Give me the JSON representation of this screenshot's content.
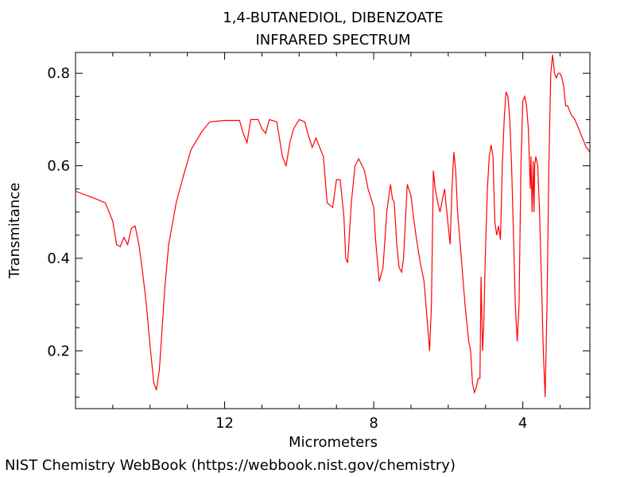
{
  "footer": "NIST Chemistry WebBook (https://webbook.nist.gov/chemistry)",
  "chart_data": {
    "type": "line",
    "title": "1,4-BUTANEDIOL, DIBENZOATE",
    "subtitle": "INFRARED SPECTRUM",
    "xlabel": "Micrometers",
    "ylabel": "Transmitance",
    "x_reversed": true,
    "xlim": [
      16.0,
      2.2
    ],
    "ylim": [
      0.075,
      0.845
    ],
    "x_ticks": [
      12,
      8,
      4
    ],
    "x_tick_labels": [
      "12",
      "8",
      "4"
    ],
    "y_ticks": [
      0.2,
      0.4,
      0.6,
      0.8
    ],
    "y_tick_labels": [
      "0.2",
      "0.4",
      "0.6",
      "0.8"
    ],
    "grid": false,
    "line_color": "#ff0000",
    "series": [
      {
        "values": [
          [
            16.0,
            0.545
          ],
          [
            15.5,
            0.53
          ],
          [
            15.2,
            0.52
          ],
          [
            15.0,
            0.48
          ],
          [
            14.9,
            0.43
          ],
          [
            14.8,
            0.425
          ],
          [
            14.7,
            0.445
          ],
          [
            14.6,
            0.43
          ],
          [
            14.5,
            0.465
          ],
          [
            14.4,
            0.47
          ],
          [
            14.3,
            0.43
          ],
          [
            14.2,
            0.37
          ],
          [
            14.1,
            0.3
          ],
          [
            14.0,
            0.21
          ],
          [
            13.9,
            0.13
          ],
          [
            13.83,
            0.115
          ],
          [
            13.75,
            0.16
          ],
          [
            13.6,
            0.34
          ],
          [
            13.5,
            0.43
          ],
          [
            13.3,
            0.52
          ],
          [
            13.1,
            0.58
          ],
          [
            12.9,
            0.635
          ],
          [
            12.6,
            0.675
          ],
          [
            12.4,
            0.695
          ],
          [
            12.0,
            0.698
          ],
          [
            11.6,
            0.698
          ],
          [
            11.5,
            0.67
          ],
          [
            11.4,
            0.65
          ],
          [
            11.3,
            0.7
          ],
          [
            11.1,
            0.7
          ],
          [
            11.0,
            0.68
          ],
          [
            10.9,
            0.67
          ],
          [
            10.8,
            0.7
          ],
          [
            10.6,
            0.695
          ],
          [
            10.45,
            0.62
          ],
          [
            10.35,
            0.6
          ],
          [
            10.25,
            0.65
          ],
          [
            10.15,
            0.68
          ],
          [
            10.0,
            0.7
          ],
          [
            9.85,
            0.695
          ],
          [
            9.75,
            0.665
          ],
          [
            9.65,
            0.64
          ],
          [
            9.55,
            0.66
          ],
          [
            9.45,
            0.64
          ],
          [
            9.35,
            0.62
          ],
          [
            9.25,
            0.52
          ],
          [
            9.1,
            0.51
          ],
          [
            9.0,
            0.57
          ],
          [
            8.9,
            0.57
          ],
          [
            8.8,
            0.49
          ],
          [
            8.75,
            0.4
          ],
          [
            8.7,
            0.39
          ],
          [
            8.6,
            0.52
          ],
          [
            8.5,
            0.6
          ],
          [
            8.4,
            0.615
          ],
          [
            8.25,
            0.59
          ],
          [
            8.15,
            0.55
          ],
          [
            8.0,
            0.51
          ],
          [
            7.95,
            0.44
          ],
          [
            7.85,
            0.35
          ],
          [
            7.75,
            0.38
          ],
          [
            7.65,
            0.5
          ],
          [
            7.55,
            0.56
          ],
          [
            7.5,
            0.53
          ],
          [
            7.45,
            0.52
          ],
          [
            7.38,
            0.43
          ],
          [
            7.32,
            0.38
          ],
          [
            7.25,
            0.37
          ],
          [
            7.2,
            0.4
          ],
          [
            7.1,
            0.56
          ],
          [
            7.0,
            0.535
          ],
          [
            6.95,
            0.5
          ],
          [
            6.85,
            0.44
          ],
          [
            6.75,
            0.39
          ],
          [
            6.65,
            0.35
          ],
          [
            6.55,
            0.25
          ],
          [
            6.5,
            0.2
          ],
          [
            6.45,
            0.3
          ],
          [
            6.4,
            0.59
          ],
          [
            6.35,
            0.55
          ],
          [
            6.28,
            0.52
          ],
          [
            6.22,
            0.5
          ],
          [
            6.15,
            0.53
          ],
          [
            6.1,
            0.55
          ],
          [
            6.0,
            0.47
          ],
          [
            5.95,
            0.43
          ],
          [
            5.9,
            0.55
          ],
          [
            5.85,
            0.63
          ],
          [
            5.8,
            0.59
          ],
          [
            5.75,
            0.5
          ],
          [
            5.65,
            0.4
          ],
          [
            5.55,
            0.3
          ],
          [
            5.45,
            0.22
          ],
          [
            5.4,
            0.2
          ],
          [
            5.35,
            0.13
          ],
          [
            5.3,
            0.11
          ],
          [
            5.25,
            0.12
          ],
          [
            5.2,
            0.14
          ],
          [
            5.15,
            0.14
          ],
          [
            5.12,
            0.36
          ],
          [
            5.08,
            0.2
          ],
          [
            5.05,
            0.25
          ],
          [
            5.0,
            0.42
          ],
          [
            4.95,
            0.55
          ],
          [
            4.9,
            0.62
          ],
          [
            4.85,
            0.645
          ],
          [
            4.8,
            0.62
          ],
          [
            4.75,
            0.48
          ],
          [
            4.7,
            0.45
          ],
          [
            4.65,
            0.47
          ],
          [
            4.6,
            0.44
          ],
          [
            4.55,
            0.6
          ],
          [
            4.5,
            0.7
          ],
          [
            4.45,
            0.76
          ],
          [
            4.4,
            0.75
          ],
          [
            4.35,
            0.7
          ],
          [
            4.3,
            0.6
          ],
          [
            4.25,
            0.45
          ],
          [
            4.2,
            0.3
          ],
          [
            4.15,
            0.22
          ],
          [
            4.1,
            0.3
          ],
          [
            4.05,
            0.6
          ],
          [
            4.0,
            0.74
          ],
          [
            3.95,
            0.75
          ],
          [
            3.9,
            0.73
          ],
          [
            3.85,
            0.68
          ],
          [
            3.8,
            0.55
          ],
          [
            3.78,
            0.62
          ],
          [
            3.75,
            0.5
          ],
          [
            3.72,
            0.61
          ],
          [
            3.7,
            0.5
          ],
          [
            3.68,
            0.6
          ],
          [
            3.65,
            0.62
          ],
          [
            3.6,
            0.6
          ],
          [
            3.55,
            0.5
          ],
          [
            3.5,
            0.35
          ],
          [
            3.45,
            0.2
          ],
          [
            3.4,
            0.1
          ],
          [
            3.35,
            0.3
          ],
          [
            3.3,
            0.6
          ],
          [
            3.25,
            0.8
          ],
          [
            3.2,
            0.84
          ],
          [
            3.15,
            0.8
          ],
          [
            3.1,
            0.79
          ],
          [
            3.05,
            0.8
          ],
          [
            3.0,
            0.8
          ],
          [
            2.95,
            0.79
          ],
          [
            2.9,
            0.77
          ],
          [
            2.85,
            0.73
          ],
          [
            2.8,
            0.73
          ],
          [
            2.75,
            0.72
          ],
          [
            2.7,
            0.71
          ],
          [
            2.6,
            0.7
          ],
          [
            2.5,
            0.68
          ],
          [
            2.4,
            0.66
          ],
          [
            2.3,
            0.64
          ],
          [
            2.2,
            0.63
          ]
        ]
      }
    ]
  }
}
